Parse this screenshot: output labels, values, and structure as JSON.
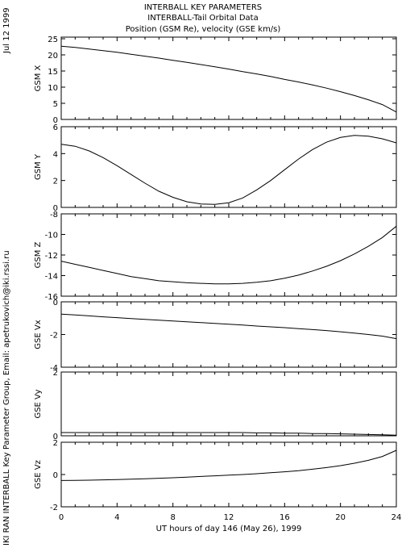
{
  "header": {
    "line1": "INTERBALL KEY PARAMETERS",
    "line2": "INTERBALL-Tail Orbital Data",
    "line3": "Position (GSM Re), velocity (GSE km/s)"
  },
  "side": {
    "date": "Jul 12 1999",
    "credit": "IKI RAN INTERBALL Key Parameter Group, Email: apetrukovich@iki.rssi.ru"
  },
  "chart_data": {
    "type": "line",
    "x": [
      0,
      1,
      2,
      3,
      4,
      5,
      6,
      7,
      8,
      9,
      10,
      11,
      12,
      13,
      14,
      15,
      16,
      17,
      18,
      19,
      20,
      21,
      22,
      23,
      24
    ],
    "xlim": [
      0,
      24
    ],
    "xticks": [
      "0",
      "4",
      "8",
      "12",
      "16",
      "20",
      "24"
    ],
    "xlabel": "UT hours of day 146 (May 26), 1999",
    "panels": [
      {
        "ylabel": "GSM X",
        "ylim": [
          0,
          25.5
        ],
        "yticks": [
          "0",
          "5",
          "10",
          "15",
          "20",
          "25"
        ],
        "values": [
          22.7,
          22.3,
          21.8,
          21.3,
          20.8,
          20.2,
          19.6,
          19.0,
          18.3,
          17.7,
          17.0,
          16.3,
          15.6,
          14.8,
          14.1,
          13.3,
          12.4,
          11.6,
          10.7,
          9.7,
          8.6,
          7.4,
          6.1,
          4.6,
          2.3
        ]
      },
      {
        "ylabel": "GSM Y",
        "ylim": [
          0,
          6
        ],
        "yticks": [
          "0",
          "2",
          "4",
          "6"
        ],
        "values": [
          4.7,
          4.55,
          4.2,
          3.7,
          3.1,
          2.45,
          1.8,
          1.2,
          0.75,
          0.42,
          0.25,
          0.22,
          0.35,
          0.7,
          1.3,
          2.0,
          2.8,
          3.6,
          4.3,
          4.85,
          5.2,
          5.35,
          5.3,
          5.1,
          4.8
        ]
      },
      {
        "ylabel": "GSM Z",
        "ylim": [
          -16,
          -8
        ],
        "yticks": [
          "-16",
          "-14",
          "-12",
          "-10",
          "-8"
        ],
        "values": [
          -12.6,
          -12.9,
          -13.2,
          -13.5,
          -13.8,
          -14.1,
          -14.3,
          -14.5,
          -14.6,
          -14.7,
          -14.75,
          -14.8,
          -14.8,
          -14.75,
          -14.65,
          -14.5,
          -14.25,
          -13.95,
          -13.55,
          -13.1,
          -12.55,
          -11.9,
          -11.15,
          -10.3,
          -9.2
        ]
      },
      {
        "ylabel": "GSE Vx",
        "ylim": [
          -4,
          0
        ],
        "yticks": [
          "-4",
          "-2",
          "0"
        ],
        "values": [
          -0.75,
          -0.8,
          -0.86,
          -0.92,
          -0.97,
          -1.02,
          -1.07,
          -1.12,
          -1.17,
          -1.22,
          -1.27,
          -1.32,
          -1.37,
          -1.42,
          -1.48,
          -1.53,
          -1.58,
          -1.64,
          -1.7,
          -1.76,
          -1.83,
          -1.91,
          -2.0,
          -2.1,
          -2.25
        ]
      },
      {
        "ylabel": "GSE Vy",
        "ylim": [
          0,
          2
        ],
        "yticks": [
          "0",
          "2"
        ],
        "values": [
          0.1,
          0.1,
          0.1,
          0.1,
          0.1,
          0.1,
          0.1,
          0.1,
          0.1,
          0.1,
          0.1,
          0.1,
          0.1,
          0.1,
          0.09,
          0.09,
          0.08,
          0.08,
          0.07,
          0.07,
          0.06,
          0.05,
          0.04,
          0.03,
          0.02
        ]
      },
      {
        "ylabel": "GSE Vz",
        "ylim": [
          -2,
          2
        ],
        "yticks": [
          "-2",
          "0",
          "2"
        ],
        "values": [
          -0.37,
          -0.36,
          -0.35,
          -0.33,
          -0.31,
          -0.29,
          -0.26,
          -0.23,
          -0.2,
          -0.16,
          -0.12,
          -0.08,
          -0.04,
          0.0,
          0.05,
          0.11,
          0.17,
          0.24,
          0.33,
          0.43,
          0.55,
          0.7,
          0.88,
          1.12,
          1.5
        ]
      }
    ]
  }
}
